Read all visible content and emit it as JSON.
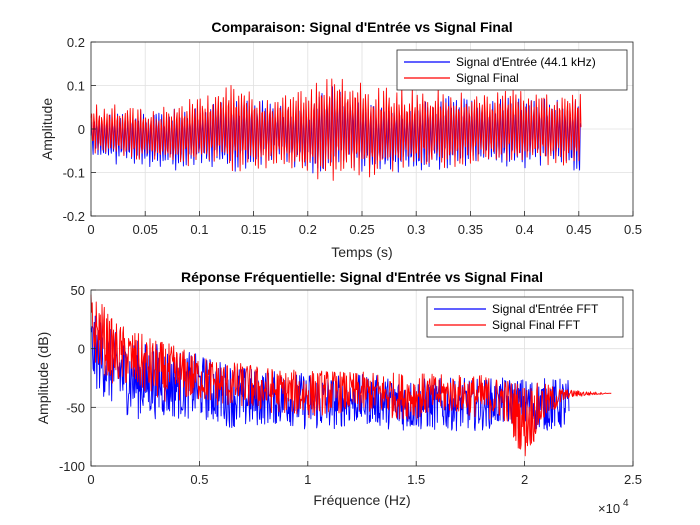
{
  "chart_data": [
    {
      "type": "line",
      "title": "Comparaison: Signal d'Entrée vs Signal Final",
      "xlabel": "Temps (s)",
      "ylabel": "Amplitude",
      "xlim": [
        0,
        0.5
      ],
      "ylim": [
        -0.2,
        0.2
      ],
      "xticks": [
        0,
        0.05,
        0.1,
        0.15,
        0.2,
        0.25,
        0.3,
        0.35,
        0.4,
        0.45,
        0.5
      ],
      "xtick_labels": [
        "0",
        "0.05",
        "0.1",
        "0.15",
        "0.2",
        "0.25",
        "0.3",
        "0.35",
        "0.4",
        "0.45",
        "0.5"
      ],
      "yticks": [
        -0.2,
        -0.1,
        0,
        0.1,
        0.2
      ],
      "ytick_labels": [
        "-0.2",
        "-0.1",
        "0",
        "0.1",
        "0.2"
      ],
      "grid": true,
      "legend_position": "top-right",
      "series": [
        {
          "name": "Signal d'Entrée (44.1 kHz)",
          "color": "#0000ff",
          "x": [
            0,
            0.02,
            0.04,
            0.06,
            0.08,
            0.1,
            0.12,
            0.14,
            0.16,
            0.18,
            0.2,
            0.22,
            0.24,
            0.26,
            0.28,
            0.3,
            0.32,
            0.34,
            0.36,
            0.38,
            0.4,
            0.42,
            0.44,
            0.452
          ],
          "envelope_max": [
            0.03,
            0.04,
            0.05,
            0.05,
            0.05,
            0.06,
            0.08,
            0.08,
            0.07,
            0.06,
            0.06,
            0.12,
            0.1,
            0.06,
            0.07,
            0.07,
            0.08,
            0.08,
            0.07,
            0.07,
            0.08,
            0.08,
            0.07,
            0.07
          ],
          "envelope_min": [
            -0.06,
            -0.08,
            -0.09,
            -0.09,
            -0.1,
            -0.09,
            -0.1,
            -0.1,
            -0.08,
            -0.08,
            -0.1,
            -0.11,
            -0.1,
            -0.12,
            -0.1,
            -0.11,
            -0.1,
            -0.09,
            -0.09,
            -0.09,
            -0.09,
            -0.09,
            -0.09,
            -0.12
          ]
        },
        {
          "name": "Signal Final",
          "color": "#ff0000",
          "x": [
            0,
            0.02,
            0.04,
            0.06,
            0.08,
            0.1,
            0.12,
            0.14,
            0.16,
            0.18,
            0.2,
            0.22,
            0.24,
            0.26,
            0.28,
            0.3,
            0.32,
            0.34,
            0.36,
            0.38,
            0.4,
            0.42,
            0.44,
            0.452
          ],
          "envelope_max": [
            0.06,
            0.06,
            0.06,
            0.05,
            0.06,
            0.08,
            0.11,
            0.1,
            0.08,
            0.09,
            0.1,
            0.14,
            0.13,
            0.1,
            0.1,
            0.1,
            0.1,
            0.09,
            0.1,
            0.09,
            0.09,
            0.09,
            0.09,
            0.09
          ],
          "envelope_min": [
            -0.06,
            -0.07,
            -0.08,
            -0.08,
            -0.09,
            -0.09,
            -0.1,
            -0.1,
            -0.09,
            -0.1,
            -0.12,
            -0.13,
            -0.11,
            -0.12,
            -0.1,
            -0.1,
            -0.1,
            -0.09,
            -0.09,
            -0.08,
            -0.09,
            -0.09,
            -0.09,
            -0.09
          ]
        }
      ]
    },
    {
      "type": "line",
      "title": "Réponse Fréquentielle: Signal d'Entrée vs Signal Final",
      "xlabel": "Fréquence (Hz)",
      "ylabel": "Amplitude (dB)",
      "xlim": [
        0,
        25000
      ],
      "ylim": [
        -100,
        50
      ],
      "x_exponent_label": "×10",
      "x_exponent_power": "4",
      "xticks": [
        0,
        5000,
        10000,
        15000,
        20000,
        25000
      ],
      "xtick_labels": [
        "0",
        "0.5",
        "1",
        "1.5",
        "2",
        "2.5"
      ],
      "yticks": [
        -100,
        -50,
        0,
        50
      ],
      "ytick_labels": [
        "-100",
        "-50",
        "0",
        "50"
      ],
      "grid": true,
      "legend_position": "top-right",
      "series": [
        {
          "name": "Signal d'Entrée FFT",
          "color": "#0000ff",
          "x": [
            0,
            500,
            1000,
            2000,
            3000,
            4000,
            5000,
            6000,
            7000,
            8000,
            9000,
            10000,
            11000,
            12000,
            13000,
            14000,
            15000,
            16000,
            17000,
            18000,
            19000,
            20000,
            21000,
            22050
          ],
          "envelope_max": [
            30,
            25,
            15,
            8,
            5,
            0,
            -5,
            -10,
            -15,
            -18,
            -20,
            -20,
            -22,
            -22,
            -22,
            -25,
            -25,
            -25,
            -25,
            -25,
            -25,
            -25,
            -25,
            -25
          ],
          "envelope_min": [
            -30,
            -40,
            -50,
            -60,
            -60,
            -60,
            -60,
            -65,
            -70,
            -65,
            -65,
            -70,
            -70,
            -65,
            -65,
            -70,
            -70,
            -70,
            -70,
            -70,
            -65,
            -70,
            -70,
            -70
          ]
        },
        {
          "name": "Signal Final FFT",
          "color": "#ff0000",
          "x": [
            0,
            500,
            1000,
            2000,
            3000,
            4000,
            5000,
            6000,
            7000,
            8000,
            9000,
            10000,
            11000,
            12000,
            13000,
            14000,
            15000,
            16000,
            17000,
            18000,
            19000,
            20000,
            21000,
            22050,
            24000
          ],
          "envelope_max": [
            48,
            40,
            25,
            15,
            8,
            2,
            -5,
            -10,
            -12,
            -15,
            -18,
            -18,
            -18,
            -20,
            -20,
            -20,
            -20,
            -22,
            -22,
            -22,
            -25,
            -28,
            -30,
            -35,
            -38
          ],
          "envelope_min": [
            -10,
            -20,
            -30,
            -35,
            -45,
            -45,
            -45,
            -50,
            -50,
            -55,
            -55,
            -60,
            -55,
            -55,
            -55,
            -60,
            -60,
            -55,
            -55,
            -60,
            -60,
            -95,
            -60,
            -42,
            -38
          ]
        }
      ]
    }
  ]
}
